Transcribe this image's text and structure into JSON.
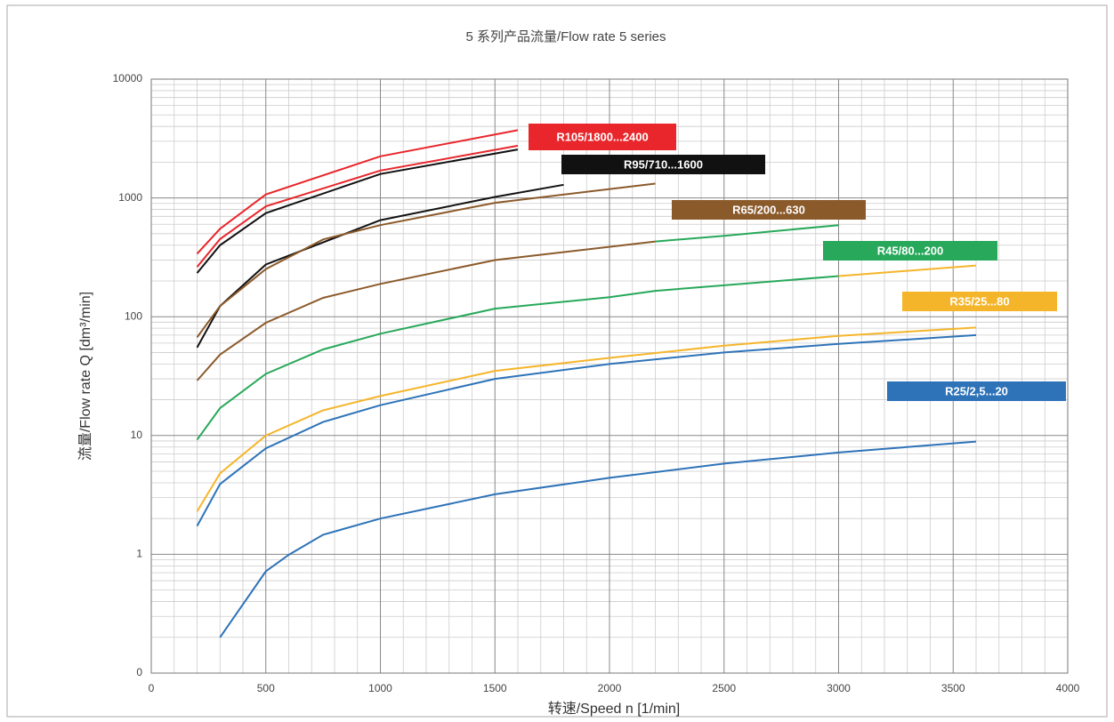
{
  "chart_data": {
    "type": "line",
    "title": "5 系列产品流量/Flow rate 5 series",
    "x_label": "转速/Speed n [1/min]",
    "y_label": "流量/Flow rate Q [dm³/min]",
    "log_y": true,
    "grid": true,
    "xlim": [
      0,
      4000
    ],
    "xticks": [
      0,
      500,
      1000,
      1500,
      2000,
      2500,
      3000,
      3500,
      4000
    ],
    "ylim": [
      0.1,
      10000
    ],
    "yticks": [
      {
        "value": 0.1,
        "label": "0"
      },
      1,
      10,
      100,
      1000,
      10000
    ],
    "series": [
      {
        "name": "R105/1800...2400",
        "color": "#e8262b",
        "curves": [
          {
            "x": [
              200,
              300,
              500,
              1000,
              1600
            ],
            "values": [
              339,
              550,
              1070,
              2240,
              3720
            ]
          },
          {
            "x": [
              200,
              300,
              500,
              1000,
              1600
            ],
            "values": [
              262,
              450,
              850,
              1700,
              2750
            ]
          }
        ]
      },
      {
        "name": "R95/710...1600",
        "color": "#111111",
        "curves": [
          {
            "x": [
              200,
              300,
              500,
              1000,
              1600
            ],
            "values": [
              233,
              400,
              745,
              1590,
              2560
            ]
          },
          {
            "x": [
              200,
              300,
              500,
              1000,
              1500,
              1800
            ],
            "values": [
              55,
              123,
              275,
              650,
              1020,
              1290
            ]
          }
        ]
      },
      {
        "name": "R65/200...630",
        "color": "#8b5a2b",
        "curves": [
          {
            "x": [
              200,
              300,
              500,
              750,
              1000,
              1500,
              2200
            ],
            "values": [
              67,
              123,
              252,
              447,
              590,
              910,
              1320
            ]
          },
          {
            "x": [
              200,
              300,
              500,
              750,
              1000,
              1500,
              2200
            ],
            "values": [
              29,
              48,
              89,
              144,
              189,
              300,
              430
            ]
          }
        ]
      },
      {
        "name": "R45/80...200",
        "color": "#27a85a",
        "curves": [
          {
            "x": [
              2200,
              2500,
              3000
            ],
            "values": [
              430,
              480,
              590
            ]
          },
          {
            "x": [
              200,
              300,
              500,
              750,
              1000,
              1500,
              2000,
              2200,
              3000
            ],
            "values": [
              9.2,
              17,
              33,
              53,
              72,
              117,
              146,
              165,
              220
            ]
          }
        ]
      },
      {
        "name": "R35/25...80",
        "color": "#f5b52a",
        "curves": [
          {
            "x": [
              3000,
              3600
            ],
            "values": [
              220,
              270
            ]
          },
          {
            "x": [
              200,
              300,
              500,
              750,
              1000,
              1500,
              2000,
              2500,
              3000,
              3600
            ],
            "values": [
              2.3,
              4.8,
              10,
              16.3,
              21.5,
              35,
              45,
              57,
              69,
              81
            ]
          }
        ]
      },
      {
        "name": "R25/2,5...20",
        "color": "#2e73b8",
        "curves": [
          {
            "x": [
              200,
              300,
              500,
              750,
              1000,
              1500,
              2000,
              2500,
              3000,
              3600
            ],
            "values": [
              1.73,
              3.9,
              7.8,
              13,
              18,
              30,
              40,
              50,
              59,
              70
            ]
          },
          {
            "x": [
              300,
              500,
              600,
              750,
              1000,
              1500,
              2000,
              2500,
              3000,
              3600
            ],
            "values": [
              0.2,
              0.72,
              0.99,
              1.46,
              2.0,
              3.2,
              4.4,
              5.8,
              7.2,
              8.9
            ]
          }
        ]
      }
    ]
  }
}
